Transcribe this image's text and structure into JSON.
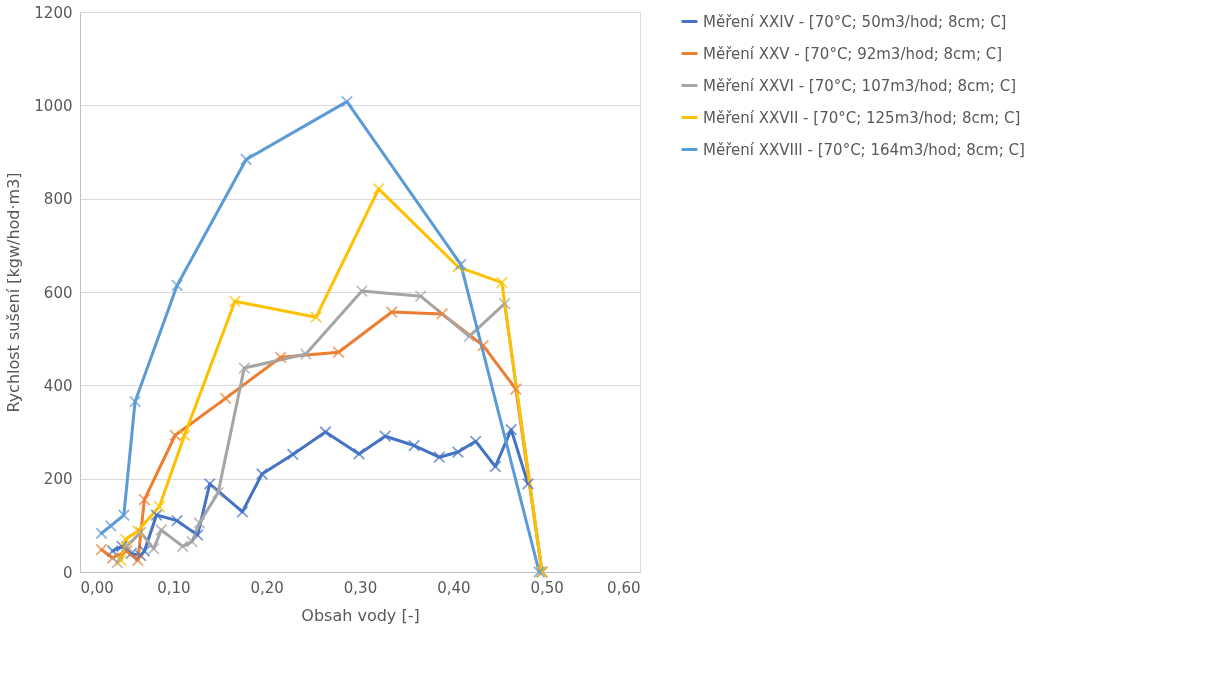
{
  "chart_data": {
    "type": "line",
    "xlabel": "Obsah vody [-]",
    "ylabel": "Rychlost sušení [kgw/hod·m3]",
    "xlim": [
      0,
      0.6
    ],
    "xticks": [
      {
        "value": 0,
        "label": "0,00"
      },
      {
        "value": 0.1,
        "label": "0,10"
      },
      {
        "value": 0.2,
        "label": "0,20"
      },
      {
        "value": 0.3,
        "label": "0,30"
      },
      {
        "value": 0.4,
        "label": "0,40"
      },
      {
        "value": 0.5,
        "label": "0,50"
      },
      {
        "value": 0.6,
        "label": "0,60"
      }
    ],
    "ylim": [
      0,
      1200
    ],
    "yticks": [
      0,
      200,
      400,
      600,
      800,
      1000,
      1200
    ],
    "grid": "y",
    "legend": "right",
    "marker": "cross",
    "line_style": "solid",
    "series": [
      {
        "name": "Měření XXIV - [70°C; 50m3/hod; 8cm; C]",
        "color": "#4472c4",
        "x": [
          0.035,
          0.045,
          0.055,
          0.065,
          0.069,
          0.082,
          0.104,
          0.126,
          0.139,
          0.174,
          0.195,
          0.228,
          0.263,
          0.299,
          0.327,
          0.358,
          0.385,
          0.405,
          0.424,
          0.445,
          0.462,
          0.48
        ],
        "values": [
          45,
          55,
          40,
          35,
          45,
          122,
          110,
          79,
          189,
          129,
          210,
          252,
          300,
          253,
          291,
          271,
          246,
          257,
          280,
          226,
          305,
          189
        ]
      },
      {
        "name": "Měření XXV - [70°C; 92m3/hod; 8cm; C]",
        "color": "#ed7d31",
        "x": [
          0.023,
          0.035,
          0.05,
          0.062,
          0.069,
          0.102,
          0.156,
          0.215,
          0.277,
          0.334,
          0.388,
          0.432,
          0.467,
          0.495
        ],
        "values": [
          48,
          30,
          45,
          25,
          155,
          293,
          372,
          460,
          471,
          557,
          553,
          485,
          392,
          0
        ]
      },
      {
        "name": "Měření XXVI - [70°C; 107m3/hod; 8cm; C]",
        "color": "#a5a5a5",
        "x": [
          0.04,
          0.05,
          0.065,
          0.079,
          0.087,
          0.11,
          0.12,
          0.128,
          0.148,
          0.176,
          0.242,
          0.302,
          0.365,
          0.417,
          0.455,
          0.495
        ],
        "values": [
          20,
          55,
          85,
          50,
          90,
          55,
          65,
          105,
          170,
          437,
          467,
          602,
          591,
          505,
          575,
          0
        ]
      },
      {
        "name": "Měření XXVII - [70°C; 125m3/hod; 8cm; C]",
        "color": "#ffc000",
        "x": [
          0.044,
          0.049,
          0.062,
          0.085,
          0.112,
          0.166,
          0.253,
          0.32,
          0.405,
          0.452,
          0.495
        ],
        "values": [
          25,
          70,
          88,
          140,
          293,
          580,
          546,
          821,
          654,
          620,
          0
        ]
      },
      {
        "name": "Měření XXVIII - [70°C; 164m3/hod; 8cm; C]",
        "color": "#5b9bd5",
        "x": [
          0.023,
          0.033,
          0.047,
          0.059,
          0.104,
          0.178,
          0.286,
          0.408,
          0.492
        ],
        "values": [
          83,
          99,
          122,
          365,
          614,
          884,
          1008,
          659,
          0
        ]
      }
    ]
  }
}
